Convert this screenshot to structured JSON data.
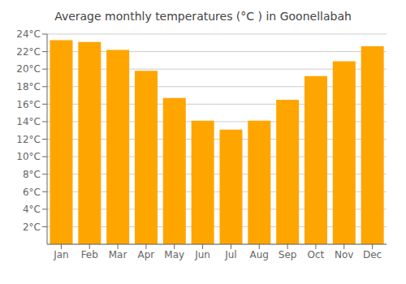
{
  "chart_data": {
    "type": "bar",
    "title": "Average monthly temperatures (°C ) in Goonellabah",
    "categories": [
      "Jan",
      "Feb",
      "Mar",
      "Apr",
      "May",
      "Jun",
      "Jul",
      "Aug",
      "Sep",
      "Oct",
      "Nov",
      "Dec"
    ],
    "values": [
      23.3,
      23.1,
      22.2,
      19.8,
      16.7,
      14.1,
      13.1,
      14.1,
      16.5,
      19.2,
      20.9,
      22.6
    ],
    "color": "#FFA500",
    "ylim": [
      0,
      24
    ],
    "yticks": [
      {
        "value": 2,
        "label": "2°C"
      },
      {
        "value": 4,
        "label": "4°C"
      },
      {
        "value": 6,
        "label": "6°C"
      },
      {
        "value": 8,
        "label": "8°C"
      },
      {
        "value": 10,
        "label": "10°C"
      },
      {
        "value": 12,
        "label": "12°C"
      },
      {
        "value": 14,
        "label": "14°C"
      },
      {
        "value": 16,
        "label": "16°C"
      },
      {
        "value": 18,
        "label": "18°C"
      },
      {
        "value": 20,
        "label": "20°C"
      },
      {
        "value": 22,
        "label": "22°C"
      },
      {
        "value": 24,
        "label": "24°C"
      }
    ],
    "grid": true
  }
}
